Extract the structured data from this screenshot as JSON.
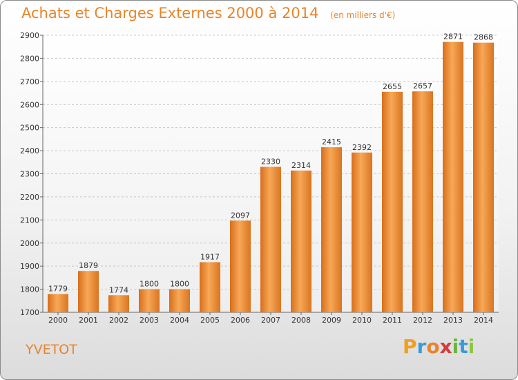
{
  "title": "Achats et Charges Externes 2000 à 2014",
  "subtitle": "(en milliers d'€)",
  "city": "YVETOT",
  "logo": {
    "letters": [
      "P",
      "r",
      "o",
      "x",
      "i",
      "t",
      "i"
    ]
  },
  "colors": {
    "accent": "#e8842a",
    "bar_light": "#f7a857",
    "bar_dark": "#d86e1a",
    "grid": "#c8c8c8"
  },
  "chart_data": {
    "type": "bar",
    "title": "Achats et Charges Externes 2000 à 2014",
    "subtitle": "(en milliers d'€)",
    "xlabel": "",
    "ylabel": "",
    "ylim": [
      1700,
      2900
    ],
    "yticks": [
      1700,
      1800,
      1900,
      2000,
      2100,
      2200,
      2300,
      2400,
      2500,
      2600,
      2700,
      2800,
      2900
    ],
    "grid": true,
    "categories": [
      "2000",
      "2001",
      "2002",
      "2003",
      "2004",
      "2005",
      "2006",
      "2007",
      "2008",
      "2009",
      "2010",
      "2011",
      "2012",
      "2013",
      "2014"
    ],
    "values": [
      1779,
      1879,
      1774,
      1800,
      1800,
      1917,
      2097,
      2330,
      2314,
      2415,
      2392,
      2655,
      2657,
      2871,
      2868
    ]
  }
}
